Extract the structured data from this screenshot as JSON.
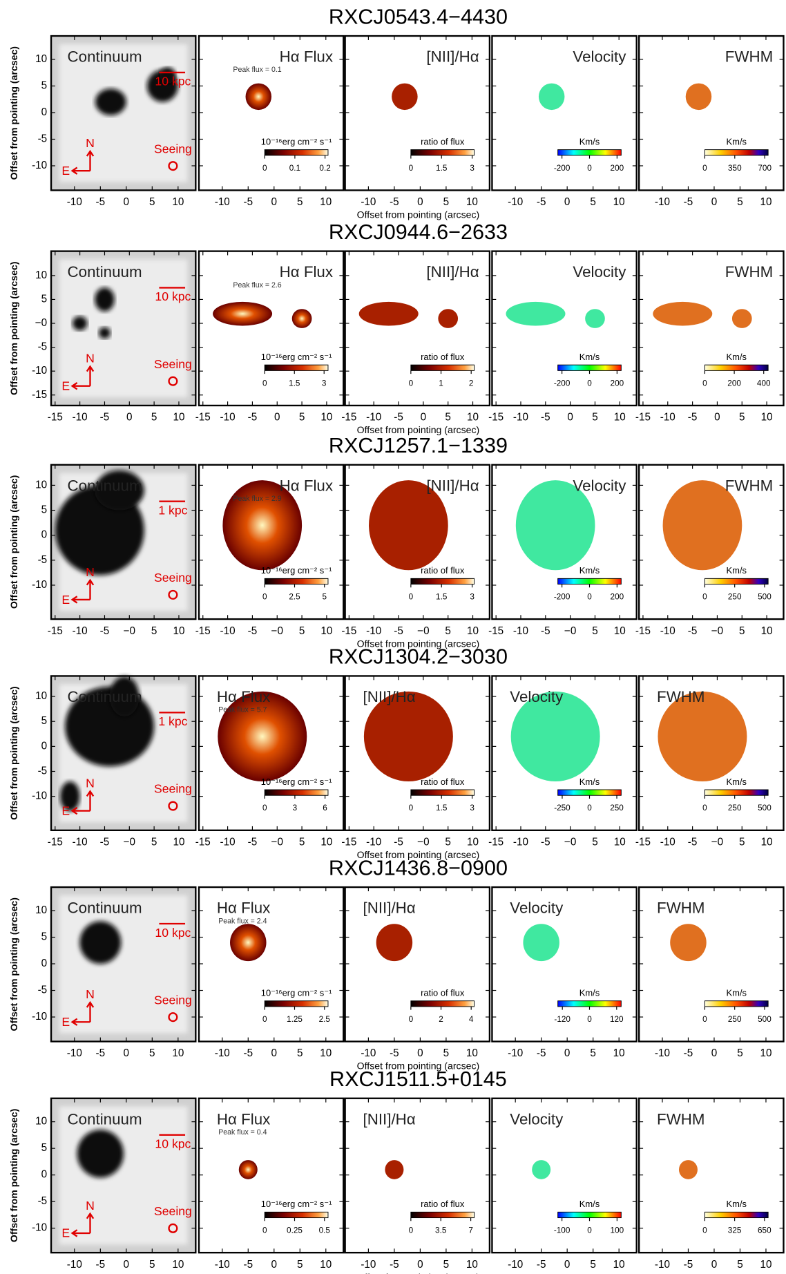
{
  "y_label": "Offset from pointing (arcsec)",
  "x_label": "Offset from pointing (arcsec)",
  "panel_labels": [
    "Continuum",
    "Hα Flux",
    "[NII]/Hα",
    "Velocity",
    "FWHM"
  ],
  "continuum_labels": {
    "north": "N",
    "east": "E",
    "seeing": "Seeing"
  },
  "chart_data": [
    {
      "type": "image",
      "title": "RXCJ0543.4−4430",
      "scale_bar": "10 kpc",
      "peak_flux": "Peak flux = 0.1",
      "xlim": [
        -14.5,
        13.4
      ],
      "xticks": [
        -10,
        -5,
        0,
        5,
        10
      ],
      "ylim": [
        -14.6,
        14.4
      ],
      "yticks": [
        10,
        5,
        0,
        -5,
        -10
      ],
      "colorbars": [
        {
          "label": "10⁻¹⁶erg cm⁻² s⁻¹",
          "cmap": "hot",
          "lim": [
            0,
            0.21
          ],
          "ticks": [
            0,
            0.1,
            0.2
          ]
        },
        {
          "label": "ratio of flux",
          "cmap": "hot",
          "lim": [
            0,
            3.1
          ],
          "ticks": [
            0,
            1.5,
            3
          ]
        },
        {
          "label": "Km/s",
          "cmap": "rainbow",
          "lim": [
            -230,
            230
          ],
          "ticks": [
            -200,
            0,
            200
          ]
        },
        {
          "label": "Km/s",
          "cmap": "fwhm",
          "lim": [
            0,
            740
          ],
          "ticks": [
            0,
            350,
            700
          ]
        }
      ]
    },
    {
      "type": "image",
      "title": "RXCJ0944.6−2633",
      "scale_bar": "10 kpc",
      "peak_flux": "Peak flux = 2.6",
      "xlim": [
        -15.8,
        13.4
      ],
      "xticks": [
        -15,
        -10,
        -5,
        0,
        5,
        10
      ],
      "ylim": [
        -17.2,
        15.1
      ],
      "yticks": [
        10,
        5,
        {
          "value": 0,
          "label": "−0"
        },
        -5,
        -10,
        -15
      ],
      "colorbars": [
        {
          "label": "10⁻¹⁶erg cm⁻² s⁻¹",
          "cmap": "hot",
          "lim": [
            0,
            3.2
          ],
          "ticks": [
            0,
            1.5,
            3
          ]
        },
        {
          "label": "ratio of flux",
          "cmap": "hot",
          "lim": [
            0,
            2.1
          ],
          "ticks": [
            0,
            1,
            2
          ]
        },
        {
          "label": "Km/s",
          "cmap": "rainbow",
          "lim": [
            -230,
            230
          ],
          "ticks": [
            -200,
            0,
            200
          ]
        },
        {
          "label": "Km/s",
          "cmap": "fwhm",
          "lim": [
            0,
            430
          ],
          "ticks": [
            0,
            200,
            400
          ]
        }
      ]
    },
    {
      "type": "image",
      "title": "RXCJ1257.1−1339",
      "scale_bar": "1 kpc",
      "peak_flux": "Peak flux = 2.9",
      "xlim": [
        -15.8,
        13.4
      ],
      "xticks": [
        -15,
        -10,
        -5,
        {
          "value": 0,
          "label": "−0"
        },
        5,
        10
      ],
      "ylim": [
        -16.8,
        14.1
      ],
      "yticks": [
        10,
        5,
        0,
        -5,
        -10
      ],
      "colorbars": [
        {
          "label": "10⁻¹⁶erg cm⁻² s⁻¹",
          "cmap": "hot",
          "lim": [
            0,
            5.3
          ],
          "ticks": [
            0,
            2.5,
            5
          ]
        },
        {
          "label": "ratio of flux",
          "cmap": "hot",
          "lim": [
            0,
            3.1
          ],
          "ticks": [
            0,
            1.5,
            3
          ]
        },
        {
          "label": "Km/s",
          "cmap": "rainbow",
          "lim": [
            -230,
            230
          ],
          "ticks": [
            -200,
            0,
            200
          ]
        },
        {
          "label": "Km/s",
          "cmap": "fwhm",
          "lim": [
            0,
            530
          ],
          "ticks": [
            0,
            250,
            500
          ]
        }
      ]
    },
    {
      "type": "image",
      "title": "RXCJ1304.2−3030",
      "scale_bar": "1 kpc",
      "peak_flux": "Peak flux = 5.7",
      "xlim": [
        -15.8,
        13.4
      ],
      "xticks": [
        -15,
        -10,
        -5,
        {
          "value": 0,
          "label": "−0"
        },
        5,
        10
      ],
      "ylim": [
        -16.8,
        14.1
      ],
      "yticks": [
        10,
        5,
        0,
        -5,
        -10
      ],
      "colorbars": [
        {
          "label": "10⁻¹⁶erg cm⁻² s⁻¹",
          "cmap": "hot",
          "lim": [
            0,
            6.3
          ],
          "ticks": [
            0,
            3,
            6
          ]
        },
        {
          "label": "ratio of flux",
          "cmap": "hot",
          "lim": [
            0,
            3.1
          ],
          "ticks": [
            0,
            1.5,
            3
          ]
        },
        {
          "label": "Km/s",
          "cmap": "rainbow",
          "lim": [
            -290,
            290
          ],
          "ticks": [
            -250,
            0,
            250
          ]
        },
        {
          "label": "Km/s",
          "cmap": "fwhm",
          "lim": [
            0,
            530
          ],
          "ticks": [
            0,
            250,
            500
          ]
        }
      ]
    },
    {
      "type": "image",
      "title": "RXCJ1436.8−0900",
      "scale_bar": "10 kpc",
      "peak_flux": "Peak flux = 2.4",
      "xlim": [
        -14.5,
        13.4
      ],
      "xticks": [
        -10,
        -5,
        0,
        5,
        10
      ],
      "ylim": [
        -14.6,
        14.4
      ],
      "yticks": [
        10,
        5,
        0,
        -5,
        -10
      ],
      "colorbars": [
        {
          "label": "10⁻¹⁶erg cm⁻² s⁻¹",
          "cmap": "hot",
          "lim": [
            0,
            2.65
          ],
          "ticks": [
            0,
            1.25,
            2.5
          ]
        },
        {
          "label": "ratio of flux",
          "cmap": "hot",
          "lim": [
            0,
            4.2
          ],
          "ticks": [
            0,
            2,
            4
          ]
        },
        {
          "label": "Km/s",
          "cmap": "rainbow",
          "lim": [
            -140,
            140
          ],
          "ticks": [
            -120,
            0,
            120
          ]
        },
        {
          "label": "Km/s",
          "cmap": "fwhm",
          "lim": [
            0,
            530
          ],
          "ticks": [
            0,
            250,
            500
          ]
        }
      ]
    },
    {
      "type": "image",
      "title": "RXCJ1511.5+0145",
      "scale_bar": "10 kpc",
      "peak_flux": "Peak flux = 0.4",
      "xlim": [
        -14.5,
        13.4
      ],
      "xticks": [
        -10,
        -5,
        0,
        5,
        10
      ],
      "ylim": [
        -14.6,
        14.4
      ],
      "yticks": [
        10,
        5,
        0,
        -5,
        -10
      ],
      "colorbars": [
        {
          "label": "10⁻¹⁶erg cm⁻² s⁻¹",
          "cmap": "hot",
          "lim": [
            0,
            0.53
          ],
          "ticks": [
            0,
            0.25,
            0.5
          ]
        },
        {
          "label": "ratio of flux",
          "cmap": "hot",
          "lim": [
            0,
            7.4
          ],
          "ticks": [
            0,
            3.5,
            7
          ]
        },
        {
          "label": "Km/s",
          "cmap": "rainbow",
          "lim": [
            -115,
            115
          ],
          "ticks": [
            -100,
            0,
            100
          ]
        },
        {
          "label": "Km/s",
          "cmap": "fwhm",
          "lim": [
            0,
            690
          ],
          "ticks": [
            0,
            325,
            650
          ]
        }
      ]
    }
  ]
}
